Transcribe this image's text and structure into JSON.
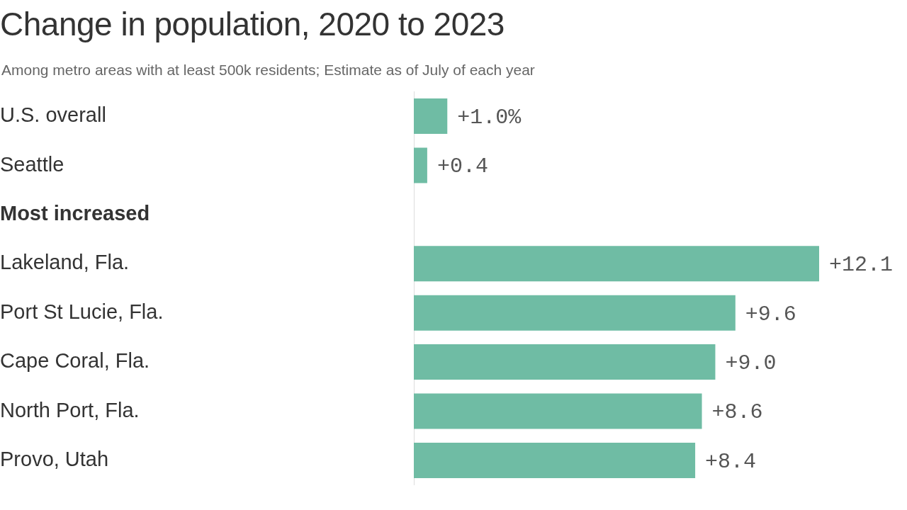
{
  "chart_data": {
    "type": "bar",
    "orientation": "horizontal",
    "title": "Change in population, 2020 to 2023",
    "subtitle": "Among metro areas with at least 500k residents; Estimate as of July of each year",
    "categories": [
      "U.S. overall",
      "Seattle",
      "Most increased",
      "Lakeland, Fla.",
      "Port St Lucie, Fla.",
      "Cape Coral, Fla.",
      "North Port, Fla.",
      "Provo, Utah"
    ],
    "values": [
      1.0,
      0.4,
      null,
      12.1,
      9.6,
      9.0,
      8.6,
      8.4
    ],
    "value_labels": [
      "+1.0%",
      "+0.4",
      null,
      "+12.1",
      "+9.6",
      "+9.0",
      "+8.6",
      "+8.4"
    ],
    "color": "#6fbca4",
    "tick_labels": "y",
    "legend": false
  }
}
